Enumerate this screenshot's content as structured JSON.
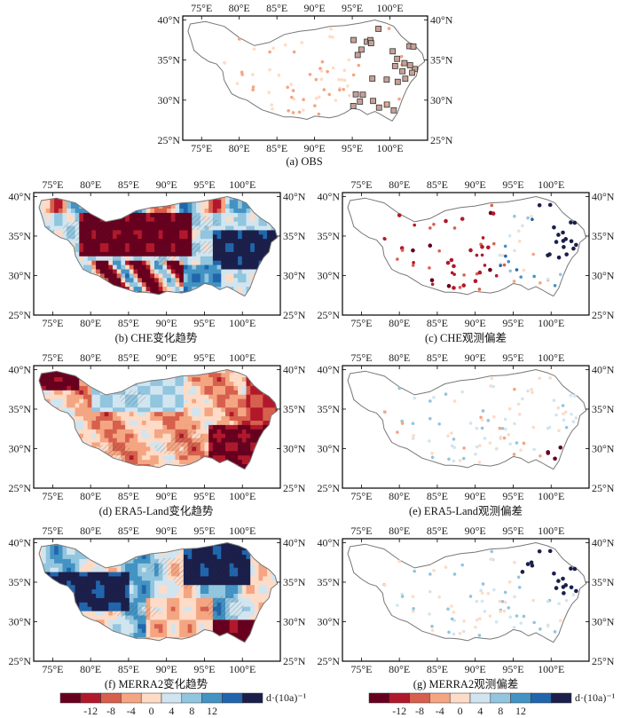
{
  "map_type": "gridded trend fields (b,d,f) and station bias maps (a,c,e,g) over the Tibetan Plateau",
  "axes": {
    "lon_labels": [
      "75°E",
      "80°E",
      "85°E",
      "90°E",
      "95°E",
      "100°E"
    ],
    "lat_labels": [
      "25°N",
      "30°N",
      "35°N",
      "40°N"
    ]
  },
  "panels": [
    {
      "id": "a",
      "caption": "(a) OBS",
      "kind": "stations"
    },
    {
      "id": "b",
      "caption": "(b) CHE变化趋势",
      "kind": "field"
    },
    {
      "id": "c",
      "caption": "(c) CHE观测偏差",
      "kind": "stations"
    },
    {
      "id": "d",
      "caption": "(d) ERA5-Land变化趋势",
      "kind": "field"
    },
    {
      "id": "e",
      "caption": "(e) ERA5-Land观测偏差",
      "kind": "stations"
    },
    {
      "id": "f",
      "caption": "(f) MERRA2变化趋势",
      "kind": "field"
    },
    {
      "id": "g",
      "caption": "(g) MERRA2观测偏差",
      "kind": "stations"
    }
  ],
  "colorbar": {
    "unit": "d·(10a)⁻¹",
    "ticks": [
      "-12",
      "-8",
      "-4",
      "0",
      "4",
      "8",
      "12"
    ],
    "colors": [
      "#67001f",
      "#b2182b",
      "#d6604d",
      "#f4a582",
      "#fddbc7",
      "#d1e5f0",
      "#92c5de",
      "#4393c3",
      "#2166ac",
      "#1b1f4a"
    ]
  },
  "colors": {
    "strong_negative": "#67001f",
    "negative": "#b2182b",
    "weak_negative": "#f4a582",
    "neutral": "#f7f7f7",
    "weak_positive": "#d1e5f0",
    "positive": "#4393c3",
    "strong_positive": "#1b1f4a",
    "plateau_outline": "#777777"
  }
}
